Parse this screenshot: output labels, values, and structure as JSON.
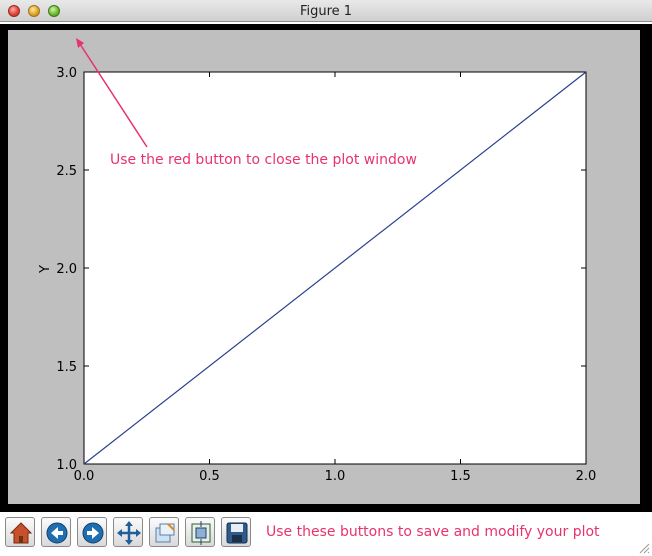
{
  "window": {
    "title": "Figure 1"
  },
  "chart_data": {
    "type": "line",
    "x": [
      0.0,
      2.0
    ],
    "series": [
      {
        "values": [
          1.0,
          3.0
        ],
        "color": "#2a3f8f"
      }
    ],
    "xlabel": "",
    "ylabel": "Y",
    "xlim": [
      0.0,
      2.0
    ],
    "ylim": [
      1.0,
      3.0
    ],
    "x_ticks": [
      "0.0",
      "0.5",
      "1.0",
      "1.5",
      "2.0"
    ],
    "y_ticks": [
      "1.0",
      "1.5",
      "2.0",
      "2.5",
      "3.0"
    ],
    "grid": false
  },
  "annotations": {
    "close_hint": "Use the red button to close the plot window",
    "toolbar_hint": "Use these buttons to save and modify your plot",
    "color": "#e8336b"
  },
  "toolbar": {
    "buttons": [
      {
        "icon": "home-icon"
      },
      {
        "icon": "back-arrow-icon"
      },
      {
        "icon": "forward-arrow-icon"
      },
      {
        "icon": "pan-icon"
      },
      {
        "icon": "zoom-icon"
      },
      {
        "icon": "subplots-icon"
      },
      {
        "icon": "save-icon"
      }
    ]
  }
}
